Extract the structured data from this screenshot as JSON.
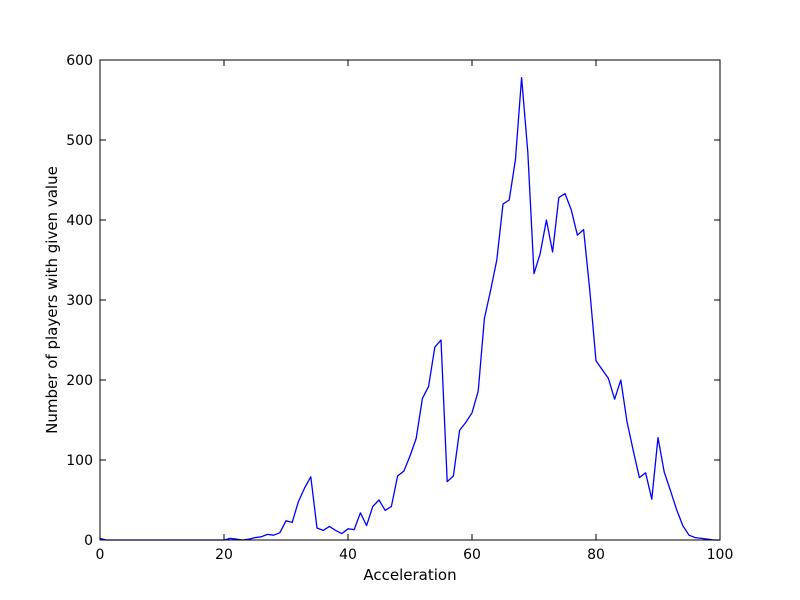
{
  "chart_data": {
    "type": "line",
    "title": "",
    "xlabel": "Acceleration",
    "ylabel": "Number of players with given value",
    "xlim": [
      0,
      100
    ],
    "ylim": [
      0,
      600
    ],
    "x_ticks": [
      0,
      20,
      40,
      60,
      80,
      100
    ],
    "y_ticks": [
      0,
      100,
      200,
      300,
      400,
      500,
      600
    ],
    "x_tick_labels": [
      "0",
      "20",
      "40",
      "60",
      "80",
      "100"
    ],
    "y_tick_labels": [
      "0",
      "100",
      "200",
      "300",
      "400",
      "500",
      "600"
    ],
    "grid": false,
    "legend": "none",
    "series": [
      {
        "color": "#0000ff",
        "x": [
          0,
          1,
          2,
          3,
          4,
          5,
          6,
          7,
          8,
          9,
          10,
          11,
          12,
          13,
          14,
          15,
          16,
          17,
          18,
          19,
          20,
          21,
          22,
          23,
          24,
          25,
          26,
          27,
          28,
          29,
          30,
          31,
          32,
          33,
          34,
          35,
          36,
          37,
          38,
          39,
          40,
          41,
          42,
          43,
          44,
          45,
          46,
          47,
          48,
          49,
          50,
          51,
          52,
          53,
          54,
          55,
          56,
          57,
          58,
          59,
          60,
          61,
          62,
          63,
          64,
          65,
          66,
          67,
          68,
          69,
          70,
          71,
          72,
          73,
          74,
          75,
          76,
          77,
          78,
          79,
          80,
          81,
          82,
          83,
          84,
          85,
          86,
          87,
          88,
          89,
          90,
          91,
          92,
          93,
          94,
          95,
          96,
          97,
          98,
          99,
          100
        ],
        "y": [
          2,
          0,
          0,
          0,
          0,
          0,
          0,
          0,
          0,
          0,
          0,
          0,
          0,
          0,
          0,
          0,
          0,
          0,
          0,
          0,
          0,
          2,
          1,
          0,
          1,
          3,
          4,
          7,
          6,
          9,
          24,
          22,
          48,
          65,
          79,
          15,
          12,
          17,
          12,
          8,
          14,
          13,
          34,
          18,
          42,
          50,
          37,
          42,
          80,
          86,
          105,
          127,
          177,
          192,
          241,
          250,
          73,
          80,
          137,
          147,
          159,
          186,
          277,
          312,
          350,
          420,
          425,
          475,
          578,
          485,
          333,
          358,
          400,
          360,
          428,
          433,
          413,
          381,
          388,
          312,
          224,
          213,
          202,
          176,
          200,
          148,
          112,
          78,
          84,
          51,
          128,
          85,
          62,
          38,
          18,
          6,
          3,
          2,
          1,
          0,
          0
        ]
      }
    ]
  }
}
